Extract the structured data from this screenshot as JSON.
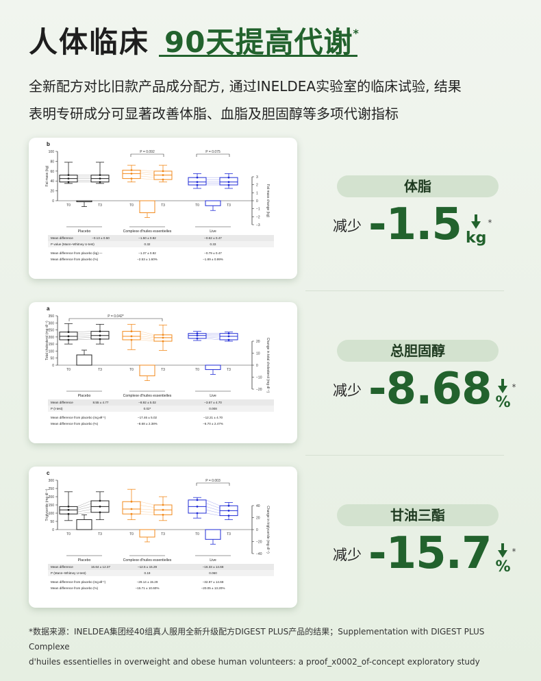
{
  "header": {
    "title_black": "人体临床",
    "title_green": "90天提高代谢",
    "title_star": "*"
  },
  "intro": {
    "line1": "全新配方对比旧款产品成分配方, 通过INELDEA实验室的临床试验, 结果",
    "line2": "表明专研成分可显著改善体脂、血脂及胆固醇等多项代谢指标"
  },
  "metrics": [
    {
      "label": "体脂",
      "prefix": "减少",
      "value": "-1.5",
      "unit": "kg",
      "star": "*"
    },
    {
      "label": "总胆固醇",
      "prefix": "减少",
      "value": "-8.68",
      "unit": "%",
      "star": "*"
    },
    {
      "label": "甘油三酯",
      "prefix": "减少",
      "value": "-15.7",
      "unit": "%",
      "star": "*"
    }
  ],
  "footnote": {
    "line1": "*数据来源：INELDEA集团经40组真人服用全新升级配方DIGEST PLUS产品的结果；Supplementation with DIGEST PLUS Complexe",
    "line2": "d'huiles essentielles in overweight and obese human volunteers: a proof_x0002_of-concept exploratory study"
  },
  "colors": {
    "placebo": "#222222",
    "complexe": "#f28a1c",
    "live": "#1f2bd6",
    "brand": "#22622d"
  },
  "chart_data": [
    {
      "type": "box",
      "panel": "b",
      "ylabel": "Fat mass (kg)",
      "y2label": "Fat mass change (kg)",
      "ylim": [
        0,
        100
      ],
      "ticks": [
        "0",
        "20",
        "40",
        "60",
        "80",
        "100"
      ],
      "y2lim": [
        -3,
        3
      ],
      "y2ticks": [
        "3",
        "2",
        "1",
        "0",
        "−1",
        "−2",
        "−3"
      ],
      "timepoints": [
        "T0",
        "T3"
      ],
      "groups": [
        "Placebo",
        "Complexe d'huiles essentielles",
        "Live"
      ],
      "pvalues": [
        "P = 0.092",
        "P = 0.075"
      ],
      "boxes": [
        {
          "q1": 38,
          "med": 45,
          "q3": 52,
          "min": 35,
          "max": 78
        },
        {
          "q1": 38,
          "med": 45,
          "q3": 52,
          "min": 35,
          "max": 78
        },
        {
          "q1": 45,
          "med": 55,
          "q3": 62,
          "min": 38,
          "max": 72
        },
        {
          "q1": 43,
          "med": 52,
          "q3": 60,
          "min": 38,
          "max": 72
        },
        {
          "q1": 32,
          "med": 38,
          "q3": 47,
          "min": 25,
          "max": 55
        },
        {
          "q1": 32,
          "med": 38,
          "q3": 47,
          "min": 25,
          "max": 55
        }
      ],
      "changes": [
        -0.13,
        -1.5,
        -0.62
      ],
      "table": {
        "rows": [
          {
            "label": "Mean difference",
            "vals": [
              "−0.13 ± 0.50",
              "−1.50 ± 0.82",
              "−0.62 ± 0.47"
            ]
          },
          {
            "label": "P value (Mann–Whitney U-test)",
            "vals": [
              "",
              "0.32",
              "0.33"
            ]
          },
          {
            "label": "Mean difference from placebo (kg)",
            "vals": [
              "—",
              "−1.37 ± 0.82",
              "−0.79 ± 0.47"
            ]
          },
          {
            "label": "Mean difference from placebo (%)",
            "vals": [
              "",
              "−2.53 ± 1.60%",
              "−1.89 ± 0.99%"
            ]
          }
        ]
      }
    },
    {
      "type": "box",
      "panel": "a",
      "ylabel": "Total cholesterol (mg dl⁻¹)",
      "y2label": "Change in total cholesterol (mg dl⁻¹)",
      "ylim": [
        0,
        350
      ],
      "ticks": [
        "0",
        "50",
        "100",
        "150",
        "200",
        "250",
        "300",
        "350"
      ],
      "y2lim": [
        -20,
        20
      ],
      "y2ticks": [
        "20",
        "10",
        "0",
        "−10",
        "−20"
      ],
      "timepoints": [
        "T0",
        "T3"
      ],
      "groups": [
        "Placebo",
        "Complexe d'huiles essentielles",
        "Live"
      ],
      "pvalues": [
        "P = 0.042*"
      ],
      "boxes": [
        {
          "q1": 180,
          "med": 205,
          "q3": 235,
          "min": 150,
          "max": 295
        },
        {
          "q1": 185,
          "med": 210,
          "q3": 240,
          "min": 150,
          "max": 290
        },
        {
          "q1": 180,
          "med": 205,
          "q3": 240,
          "min": 110,
          "max": 290
        },
        {
          "q1": 170,
          "med": 195,
          "q3": 215,
          "min": 105,
          "max": 285
        },
        {
          "q1": 190,
          "med": 210,
          "q3": 225,
          "min": 175,
          "max": 240
        },
        {
          "q1": 180,
          "med": 205,
          "q3": 225,
          "min": 170,
          "max": 235
        }
      ],
      "changes": [
        8.55,
        -8.92,
        -3.67
      ],
      "table": {
        "rows": [
          {
            "label": "Mean difference",
            "vals": [
              "8.55 ± 4.77",
              "−8.92 ± 5.02",
              "−3.67 ± 4.70"
            ]
          },
          {
            "label": "P (t-test)",
            "vals": [
              "",
              "0.02*",
              "0.008"
            ]
          },
          {
            "label": "Mean difference from placebo (mg dl⁻¹)",
            "vals": [
              "—",
              "−17.46 ± 5.02",
              "−12.21 ± 4.70"
            ]
          },
          {
            "label": "Mean difference from placebo (%)",
            "vals": [
              "",
              "−8.68 ± 2.38%",
              "−6.70 ± 2.47%"
            ]
          }
        ]
      }
    },
    {
      "type": "box",
      "panel": "c",
      "ylabel": "Triglyceride (mg dl⁻¹)",
      "y2label": "Change in triglyceride (mg dl⁻¹)",
      "ylim": [
        0,
        300
      ],
      "ticks": [
        "0",
        "50",
        "100",
        "150",
        "200",
        "250",
        "300"
      ],
      "y2lim": [
        -40,
        40
      ],
      "y2ticks": [
        "40",
        "20",
        "0",
        "−20",
        "−40"
      ],
      "timepoints": [
        "T0",
        "T3"
      ],
      "groups": [
        "Placebo",
        "Complexe d'huiles essentielles",
        "Live"
      ],
      "pvalues": [
        "P = 0.003"
      ],
      "boxes": [
        {
          "q1": 95,
          "med": 120,
          "q3": 140,
          "min": 55,
          "max": 230
        },
        {
          "q1": 105,
          "med": 140,
          "q3": 175,
          "min": 60,
          "max": 230
        },
        {
          "q1": 95,
          "med": 125,
          "q3": 170,
          "min": 60,
          "max": 245
        },
        {
          "q1": 90,
          "med": 120,
          "q3": 150,
          "min": 55,
          "max": 200
        },
        {
          "q1": 100,
          "med": 140,
          "q3": 180,
          "min": 70,
          "max": 195
        },
        {
          "q1": 85,
          "med": 115,
          "q3": 145,
          "min": 60,
          "max": 165
        }
      ],
      "changes": [
        16.64,
        -12.5,
        -16.33
      ],
      "table": {
        "rows": [
          {
            "label": "Mean difference",
            "vals": [
              "16.64 ± 12.37",
              "−12.5 ± 15.29",
              "−16.33 ± 14.68"
            ]
          },
          {
            "label": "P (Mann–Whitney U-test)",
            "vals": [
              "",
              "0.19",
              "0.060"
            ]
          },
          {
            "label": "Mean difference from placebo (mg dl⁻¹)",
            "vals": [
              "—",
              "−29.14 ± 15.29",
              "−32.97 ± 14.68"
            ]
          },
          {
            "label": "Mean difference from placebo (%)",
            "vals": [
              "",
              "−15.71 ± 10.60%",
              "−20.05 ± 13.20%"
            ]
          }
        ]
      }
    }
  ]
}
